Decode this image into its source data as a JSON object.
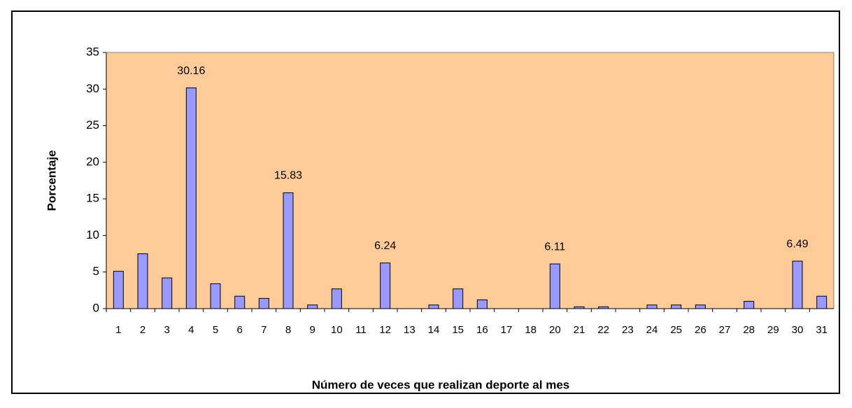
{
  "chart_data": {
    "type": "bar",
    "xlabel": "Número de veces que realizan deporte al mes",
    "ylabel": "Porcentaje",
    "categories": [
      "1",
      "2",
      "3",
      "4",
      "5",
      "6",
      "7",
      "8",
      "9",
      "10",
      "11",
      "12",
      "13",
      "14",
      "15",
      "16",
      "17",
      "18",
      "20",
      "21",
      "22",
      "23",
      "24",
      "25",
      "26",
      "27",
      "28",
      "29",
      "30",
      "31"
    ],
    "values": [
      5.1,
      7.5,
      4.2,
      30.16,
      3.4,
      1.7,
      1.4,
      15.83,
      0.5,
      2.7,
      0,
      6.24,
      0,
      0.5,
      2.7,
      1.2,
      0,
      0,
      6.11,
      0.25,
      0.25,
      0,
      0.5,
      0.5,
      0.5,
      0,
      1.0,
      0,
      6.49,
      1.7
    ],
    "value_labels": [
      null,
      null,
      null,
      "30.16",
      null,
      null,
      null,
      "15.83",
      null,
      null,
      null,
      "6.24",
      null,
      null,
      null,
      null,
      null,
      null,
      "6.11",
      null,
      null,
      null,
      null,
      null,
      null,
      null,
      null,
      null,
      "6.49",
      null
    ],
    "color": "#9999ff",
    "background": "#ffcc99",
    "ylim": [
      0,
      35
    ],
    "yticks": [
      0,
      5,
      10,
      15,
      20,
      25,
      30,
      35
    ],
    "grid": false
  }
}
